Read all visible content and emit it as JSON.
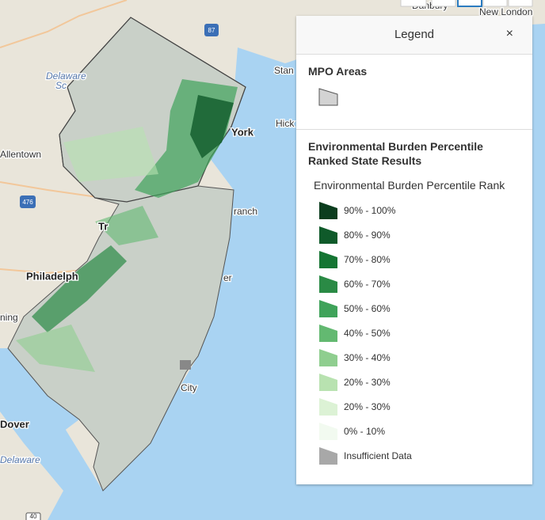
{
  "map": {
    "labels": [
      "Danbury",
      "New London",
      "Stan",
      "Hick",
      "York",
      "Delaware",
      "Sc",
      "Allentown",
      "ranch",
      "Tr",
      "Philadelph",
      "er",
      "ning",
      "City",
      "Dover",
      "Delaware"
    ],
    "shields": [
      "87",
      "476",
      "40"
    ]
  },
  "legend": {
    "title": "Legend",
    "close": "×",
    "sections": [
      {
        "title": "MPO Areas",
        "color": "#d3d3d3"
      },
      {
        "title": "Environmental Burden Percentile Ranked State Results",
        "subtitle": "Environmental Burden Percentile Rank",
        "items": [
          {
            "label": "90% - 100%",
            "color": "#0b3d1e"
          },
          {
            "label": "80% - 90%",
            "color": "#0f5a2a"
          },
          {
            "label": "70% - 80%",
            "color": "#157533"
          },
          {
            "label": "60% - 70%",
            "color": "#2a8a45"
          },
          {
            "label": "50% - 60%",
            "color": "#3fa35a"
          },
          {
            "label": "40% - 50%",
            "color": "#63b971"
          },
          {
            "label": "30% - 40%",
            "color": "#8fce8f"
          },
          {
            "label": "20% - 30%",
            "color": "#b8e2b0"
          },
          {
            "label": "20% - 30%",
            "color": "#dcf2d5"
          },
          {
            "label": "0% - 10%",
            "color": "#f2faf0"
          },
          {
            "label": "Insufficient Data",
            "color": "#a8a8a8"
          }
        ]
      }
    ]
  }
}
